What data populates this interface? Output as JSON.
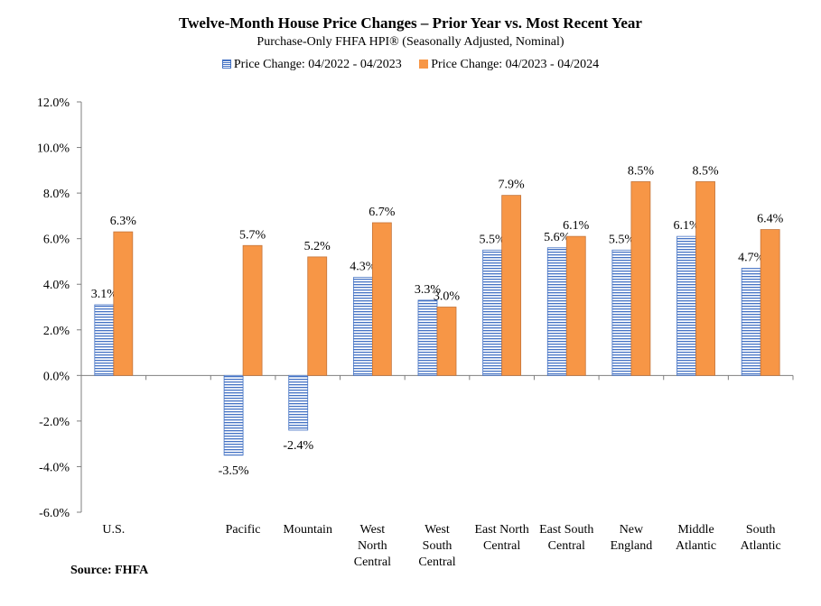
{
  "colors": {
    "series1_stroke": "#4472c4",
    "series1_fill": "#ffffff",
    "series2_fill": "#f79646",
    "series2_stroke": "#c4743a",
    "axis": "#7f7f7f"
  },
  "chart_data": {
    "type": "bar",
    "title": "Twelve-Month House Price Changes – Prior Year vs. Most Recent Year",
    "subtitle": "Purchase-Only FHFA HPI® (Seasonally Adjusted, Nominal)",
    "legend_position": "top",
    "grid": false,
    "ylim": [
      -6.0,
      12.0
    ],
    "yticks": [
      12.0,
      10.0,
      8.0,
      6.0,
      4.0,
      2.0,
      0.0,
      -2.0,
      -4.0,
      -6.0
    ],
    "ytick_labels": [
      "12.0%",
      "10.0%",
      "8.0%",
      "6.0%",
      "4.0%",
      "2.0%",
      "0.0%",
      "-2.0%",
      "-4.0%",
      "-6.0%"
    ],
    "categories": [
      [
        "U.S."
      ],
      [],
      [
        "Pacific"
      ],
      [
        "Mountain"
      ],
      [
        "West",
        "North",
        "Central"
      ],
      [
        "West",
        "South",
        "Central"
      ],
      [
        "East North",
        "Central"
      ],
      [
        "East South",
        "Central"
      ],
      [
        "New",
        "England"
      ],
      [
        "Middle",
        "Atlantic"
      ],
      [
        "South",
        "Atlantic"
      ]
    ],
    "series": [
      {
        "name": "Price Change:  04/2022 - 04/2023",
        "values": [
          3.1,
          null,
          -3.5,
          -2.4,
          4.3,
          3.3,
          5.5,
          5.6,
          5.5,
          6.1,
          4.7
        ],
        "labels": [
          "3.1%",
          "",
          "-3.5%",
          "-2.4%",
          "4.3%",
          "3.3%",
          "5.5%",
          "5.6%",
          "5.5%",
          "6.1%",
          "4.7%"
        ]
      },
      {
        "name": "Price Change:  04/2023 - 04/2024",
        "values": [
          6.3,
          null,
          5.7,
          5.2,
          6.7,
          3.0,
          7.9,
          6.1,
          8.5,
          8.5,
          6.4
        ],
        "labels": [
          "6.3%",
          "",
          "5.7%",
          "5.2%",
          "6.7%",
          "3.0%",
          "7.9%",
          "6.1%",
          "8.5%",
          "8.5%",
          "6.4%"
        ]
      }
    ]
  },
  "source": "Source: FHFA"
}
